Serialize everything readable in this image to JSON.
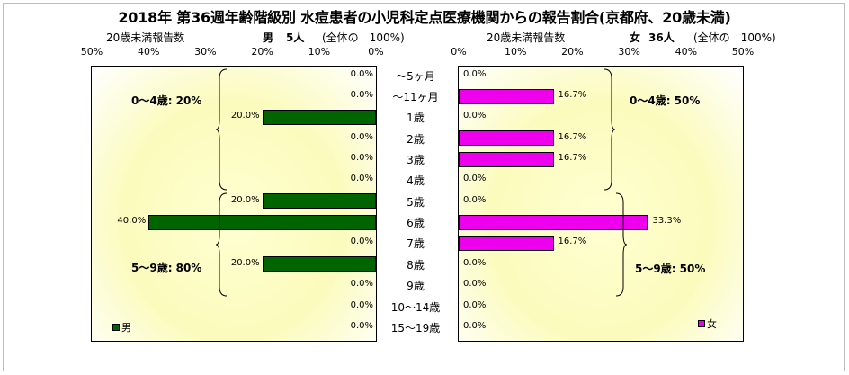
{
  "title": "2018年 第36週年齢階級別 水痘患者の小児科定点医療機関からの報告割合(京都府、20歳未満)",
  "male": {
    "axis_title": "20歳未満報告数",
    "total_label": "男",
    "total_count": "5人",
    "share_label": "(全体の　100%)",
    "legend": "男",
    "color": "#006400"
  },
  "female": {
    "axis_title": "20歳未満報告数",
    "total_label": "女",
    "total_count": "36人",
    "share_label": "(全体の　100%)",
    "legend": "女",
    "color": "#ee00ee"
  },
  "groups": {
    "male_0_4": "0～4歳: 20%",
    "male_5_9": "5～9歳: 80%",
    "female_0_4": "0～4歳: 50%",
    "female_5_9": "5～9歳: 50%"
  },
  "chart_data": {
    "type": "bar",
    "orientation": "horizontal",
    "categories": [
      "～5ヶ月",
      "～11ヶ月",
      "1歳",
      "2歳",
      "3歳",
      "4歳",
      "5歳",
      "6歳",
      "7歳",
      "8歳",
      "9歳",
      "10～14歳",
      "15～19歳"
    ],
    "series": [
      {
        "name": "男",
        "values": [
          0.0,
          0.0,
          20.0,
          0.0,
          0.0,
          0.0,
          20.0,
          40.0,
          0.0,
          20.0,
          0.0,
          0.0,
          0.0
        ]
      },
      {
        "name": "女",
        "values": [
          0.0,
          16.7,
          0.0,
          16.7,
          16.7,
          0.0,
          0.0,
          33.3,
          16.7,
          0.0,
          0.0,
          0.0,
          0.0
        ]
      }
    ],
    "value_labels_male": [
      "0.0%",
      "0.0%",
      "20.0%",
      "0.0%",
      "0.0%",
      "0.0%",
      "20.0%",
      "40.0%",
      "0.0%",
      "20.0%",
      "0.0%",
      "0.0%",
      "0.0%"
    ],
    "value_labels_female": [
      "0.0%",
      "16.7%",
      "0.0%",
      "16.7%",
      "16.7%",
      "0.0%",
      "0.0%",
      "33.3%",
      "16.7%",
      "0.0%",
      "0.0%",
      "0.0%",
      "0.0%"
    ],
    "xlim": [
      0,
      50
    ],
    "tick_labels_male": [
      "50%",
      "40%",
      "30%",
      "20%",
      "10%",
      "0%"
    ],
    "tick_labels_female": [
      "0%",
      "10%",
      "20%",
      "30%",
      "40%",
      "50%"
    ],
    "grid": false,
    "legend_position": "bottom-left / bottom-right"
  }
}
